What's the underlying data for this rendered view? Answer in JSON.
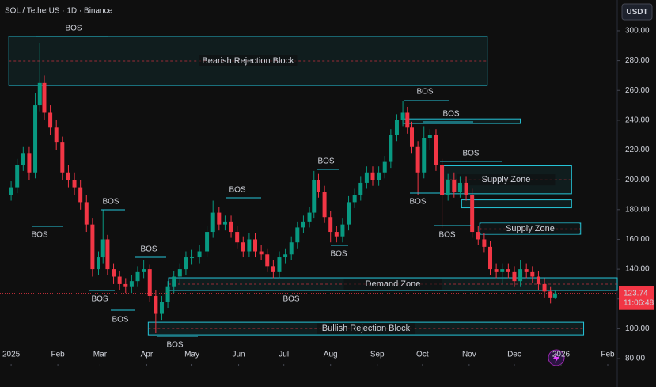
{
  "chart_data": {
    "type": "candlestick",
    "title": "SOL / TetherUS · 1D · Binance",
    "currency": "USDT",
    "timer": "11:06:48",
    "last_price": 123.74,
    "up_color": "#089981",
    "down_color": "#f23645",
    "zone_color": "#26c6da",
    "xlim": [
      -7.4,
      402.3
    ],
    "ylim": [
      76.3,
      320.7
    ],
    "xticks": [
      {
        "value": 0,
        "label": "2025"
      },
      {
        "value": 31,
        "label": "Feb"
      },
      {
        "value": 59,
        "label": "Mar"
      },
      {
        "value": 90,
        "label": "Apr"
      },
      {
        "value": 120,
        "label": "May"
      },
      {
        "value": 151,
        "label": "Jun"
      },
      {
        "value": 181,
        "label": "Jul"
      },
      {
        "value": 212,
        "label": "Aug"
      },
      {
        "value": 243,
        "label": "Sep"
      },
      {
        "value": 273,
        "label": "Oct"
      },
      {
        "value": 304,
        "label": "Nov"
      },
      {
        "value": 334,
        "label": "Dec"
      },
      {
        "value": 365,
        "label": "2026"
      },
      {
        "value": 396,
        "label": "Feb"
      }
    ],
    "yticks": [
      {
        "value": 80,
        "label": "80.00"
      },
      {
        "value": 100,
        "label": "100.00"
      },
      {
        "value": 120,
        "label": "120.00"
      },
      {
        "value": 140,
        "label": "140.00"
      },
      {
        "value": 160,
        "label": "160.00"
      },
      {
        "value": 180,
        "label": "180.00"
      },
      {
        "value": 200,
        "label": "200.00"
      },
      {
        "value": 220,
        "label": "220.00"
      },
      {
        "value": 240,
        "label": "240.00"
      },
      {
        "value": 260,
        "label": "260.00"
      },
      {
        "value": 280,
        "label": "280.00"
      },
      {
        "value": 300,
        "label": "300.00"
      }
    ],
    "x": [
      0,
      4,
      8,
      12,
      16,
      19,
      22,
      26,
      30,
      34,
      38,
      42,
      46,
      50,
      54,
      58,
      61,
      64,
      68,
      72,
      76,
      80,
      84,
      88,
      92,
      96,
      100,
      104,
      108,
      112,
      116,
      120,
      125,
      130,
      134,
      138,
      142,
      146,
      150,
      154,
      158,
      162,
      166,
      170,
      174,
      178,
      182,
      186,
      190,
      194,
      198,
      201,
      204,
      208,
      212,
      216,
      220,
      224,
      228,
      232,
      236,
      240,
      244,
      248,
      252,
      256,
      260,
      263,
      266,
      270,
      274,
      278,
      282,
      286,
      290,
      294,
      298,
      302,
      306,
      310,
      314,
      318,
      322,
      326,
      330,
      334,
      338,
      342,
      346,
      350,
      354,
      358,
      361
    ],
    "open": [
      190,
      195,
      210,
      218,
      205,
      250,
      265,
      245,
      235,
      225,
      205,
      200,
      195,
      185,
      170,
      140,
      148,
      160,
      140,
      135,
      130,
      128,
      132,
      138,
      140,
      122,
      110,
      118,
      128,
      135,
      140,
      148,
      148,
      152,
      165,
      178,
      170,
      172,
      165,
      158,
      152,
      160,
      152,
      150,
      142,
      138,
      148,
      150,
      158,
      168,
      172,
      178,
      200,
      192,
      175,
      165,
      162,
      170,
      185,
      190,
      198,
      205,
      200,
      205,
      212,
      230,
      240,
      245,
      235,
      222,
      205,
      228,
      230,
      210,
      190,
      200,
      192,
      198,
      190,
      165,
      160,
      155,
      140,
      138,
      140,
      138,
      132,
      140,
      138,
      135,
      130,
      125,
      121
    ],
    "high": [
      199,
      214,
      222,
      222,
      258,
      292,
      270,
      250,
      240,
      229,
      210,
      205,
      200,
      190,
      174,
      152,
      180,
      163,
      144,
      139,
      134,
      136,
      142,
      146,
      143,
      126,
      122,
      132,
      139,
      144,
      152,
      153,
      156,
      169,
      186,
      182,
      176,
      176,
      169,
      162,
      164,
      164,
      156,
      154,
      146,
      152,
      154,
      162,
      172,
      176,
      182,
      206,
      204,
      196,
      179,
      169,
      174,
      189,
      194,
      202,
      209,
      209,
      209,
      216,
      234,
      244,
      253,
      249,
      239,
      226,
      236,
      234,
      234,
      214,
      204,
      205,
      202,
      202,
      194,
      169,
      164,
      159,
      144,
      144,
      144,
      142,
      146,
      144,
      142,
      139,
      134,
      128,
      126
    ],
    "low": [
      186,
      191,
      206,
      200,
      201,
      246,
      240,
      230,
      220,
      200,
      195,
      190,
      180,
      165,
      135,
      136,
      144,
      136,
      130,
      126,
      124,
      124,
      128,
      134,
      118,
      97,
      106,
      114,
      124,
      131,
      136,
      143,
      144,
      148,
      161,
      166,
      166,
      161,
      154,
      148,
      148,
      148,
      146,
      138,
      134,
      134,
      144,
      146,
      154,
      164,
      168,
      174,
      188,
      171,
      158,
      158,
      158,
      166,
      181,
      186,
      194,
      196,
      196,
      201,
      208,
      226,
      236,
      231,
      218,
      190,
      201,
      220,
      206,
      168,
      186,
      188,
      188,
      186,
      161,
      156,
      151,
      136,
      134,
      130,
      134,
      128,
      128,
      134,
      131,
      126,
      121,
      117,
      120
    ],
    "close": [
      195,
      210,
      218,
      205,
      250,
      265,
      245,
      235,
      225,
      205,
      200,
      195,
      185,
      170,
      140,
      148,
      160,
      140,
      135,
      130,
      128,
      132,
      138,
      140,
      122,
      110,
      118,
      128,
      135,
      140,
      148,
      148,
      152,
      165,
      178,
      170,
      172,
      165,
      158,
      152,
      160,
      152,
      150,
      142,
      138,
      148,
      150,
      158,
      168,
      172,
      178,
      200,
      192,
      175,
      165,
      162,
      170,
      185,
      190,
      198,
      205,
      200,
      205,
      212,
      230,
      240,
      245,
      235,
      222,
      205,
      228,
      230,
      210,
      190,
      200,
      192,
      198,
      190,
      165,
      160,
      155,
      140,
      138,
      140,
      138,
      132,
      140,
      138,
      135,
      130,
      125,
      121,
      123.74
    ],
    "bos_label": "BOS",
    "zones": [
      {
        "label": "Bearish Rejection Block",
        "x": [
          -1.5,
          316
        ],
        "y": [
          263.3,
          296.3
        ]
      },
      {
        "label": "Supply Zone",
        "x": [
          285,
          372
        ],
        "y": [
          190.6,
          209.4
        ]
      },
      {
        "label": "Supply Zone",
        "x": [
          311,
          378
        ],
        "y": [
          163.4,
          170.9
        ]
      },
      {
        "label": "Demand Zone",
        "x": [
          104.5,
          402.3
        ],
        "y": [
          125.7,
          134.2
        ]
      },
      {
        "label": "Bullish Rejection Block",
        "x": [
          91,
          380
        ],
        "y": [
          95.9,
          104.4
        ]
      },
      {
        "x": [
          260,
          338
        ],
        "y": [
          237.8,
          240.9
        ]
      },
      {
        "x": [
          299,
          372
        ],
        "y": [
          181.2,
          186.5
        ]
      }
    ]
  }
}
